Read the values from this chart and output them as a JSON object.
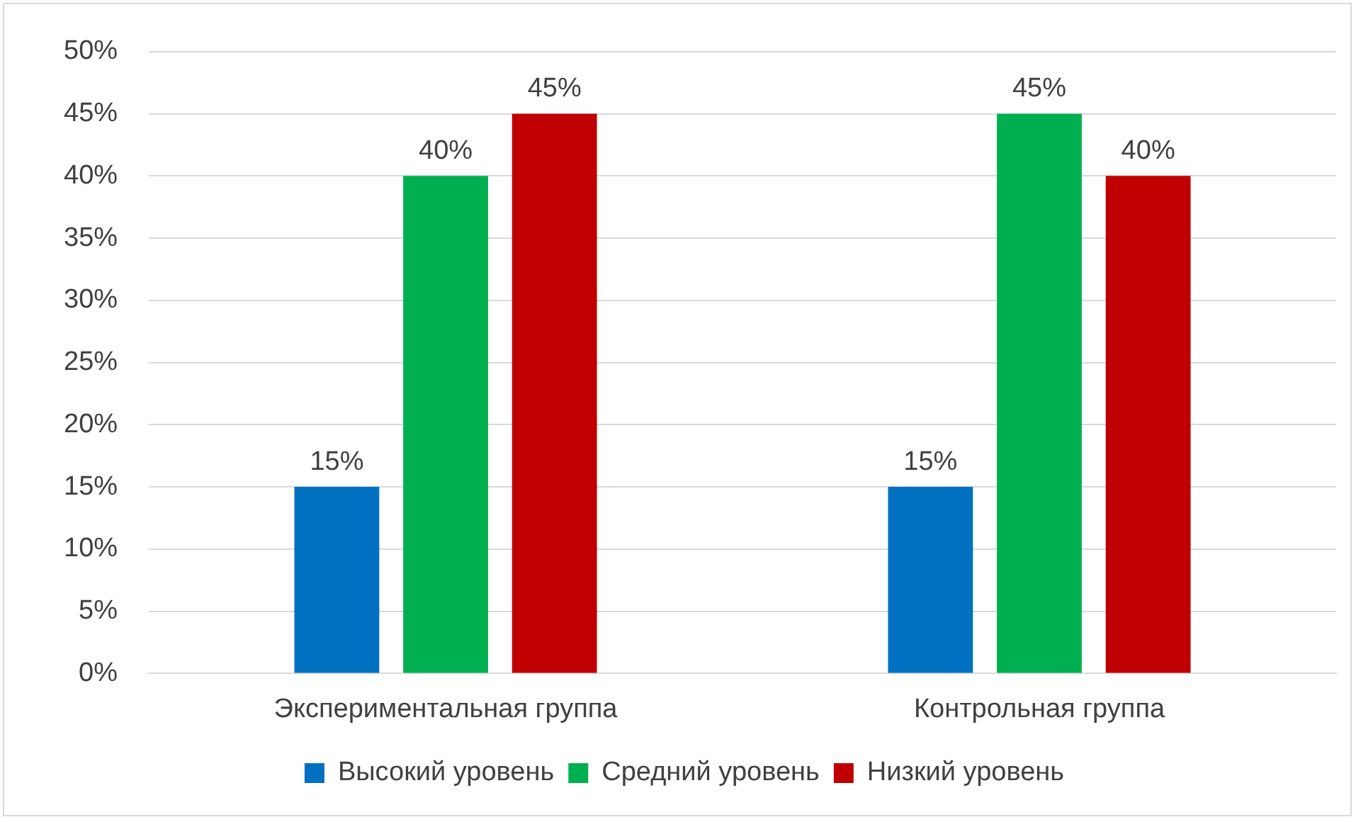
{
  "chart_data": {
    "type": "bar",
    "categories": [
      "Экспериментальная группа",
      "Контрольная группа"
    ],
    "series": [
      {
        "name": "Высокий уровень",
        "color": "#0070c0",
        "values": [
          15,
          15
        ],
        "value_labels": [
          "15%",
          "15%"
        ]
      },
      {
        "name": "Средний уровень",
        "color": "#00b050",
        "values": [
          40,
          45
        ],
        "value_labels": [
          "40%",
          "45%"
        ]
      },
      {
        "name": "Низкий уровень",
        "color": "#c00000",
        "values": [
          45,
          40
        ],
        "value_labels": [
          "45%",
          "40%"
        ]
      }
    ],
    "ylim": [
      0,
      50
    ],
    "yticks": [
      {
        "value": 0,
        "label": "0%"
      },
      {
        "value": 5,
        "label": "5%"
      },
      {
        "value": 10,
        "label": "10%"
      },
      {
        "value": 15,
        "label": "15%"
      },
      {
        "value": 20,
        "label": "20%"
      },
      {
        "value": 25,
        "label": "25%"
      },
      {
        "value": 30,
        "label": "30%"
      },
      {
        "value": 35,
        "label": "35%"
      },
      {
        "value": 40,
        "label": "40%"
      },
      {
        "value": 45,
        "label": "45%"
      },
      {
        "value": 50,
        "label": "50%"
      }
    ],
    "grid": "y",
    "legend": "bottom"
  }
}
